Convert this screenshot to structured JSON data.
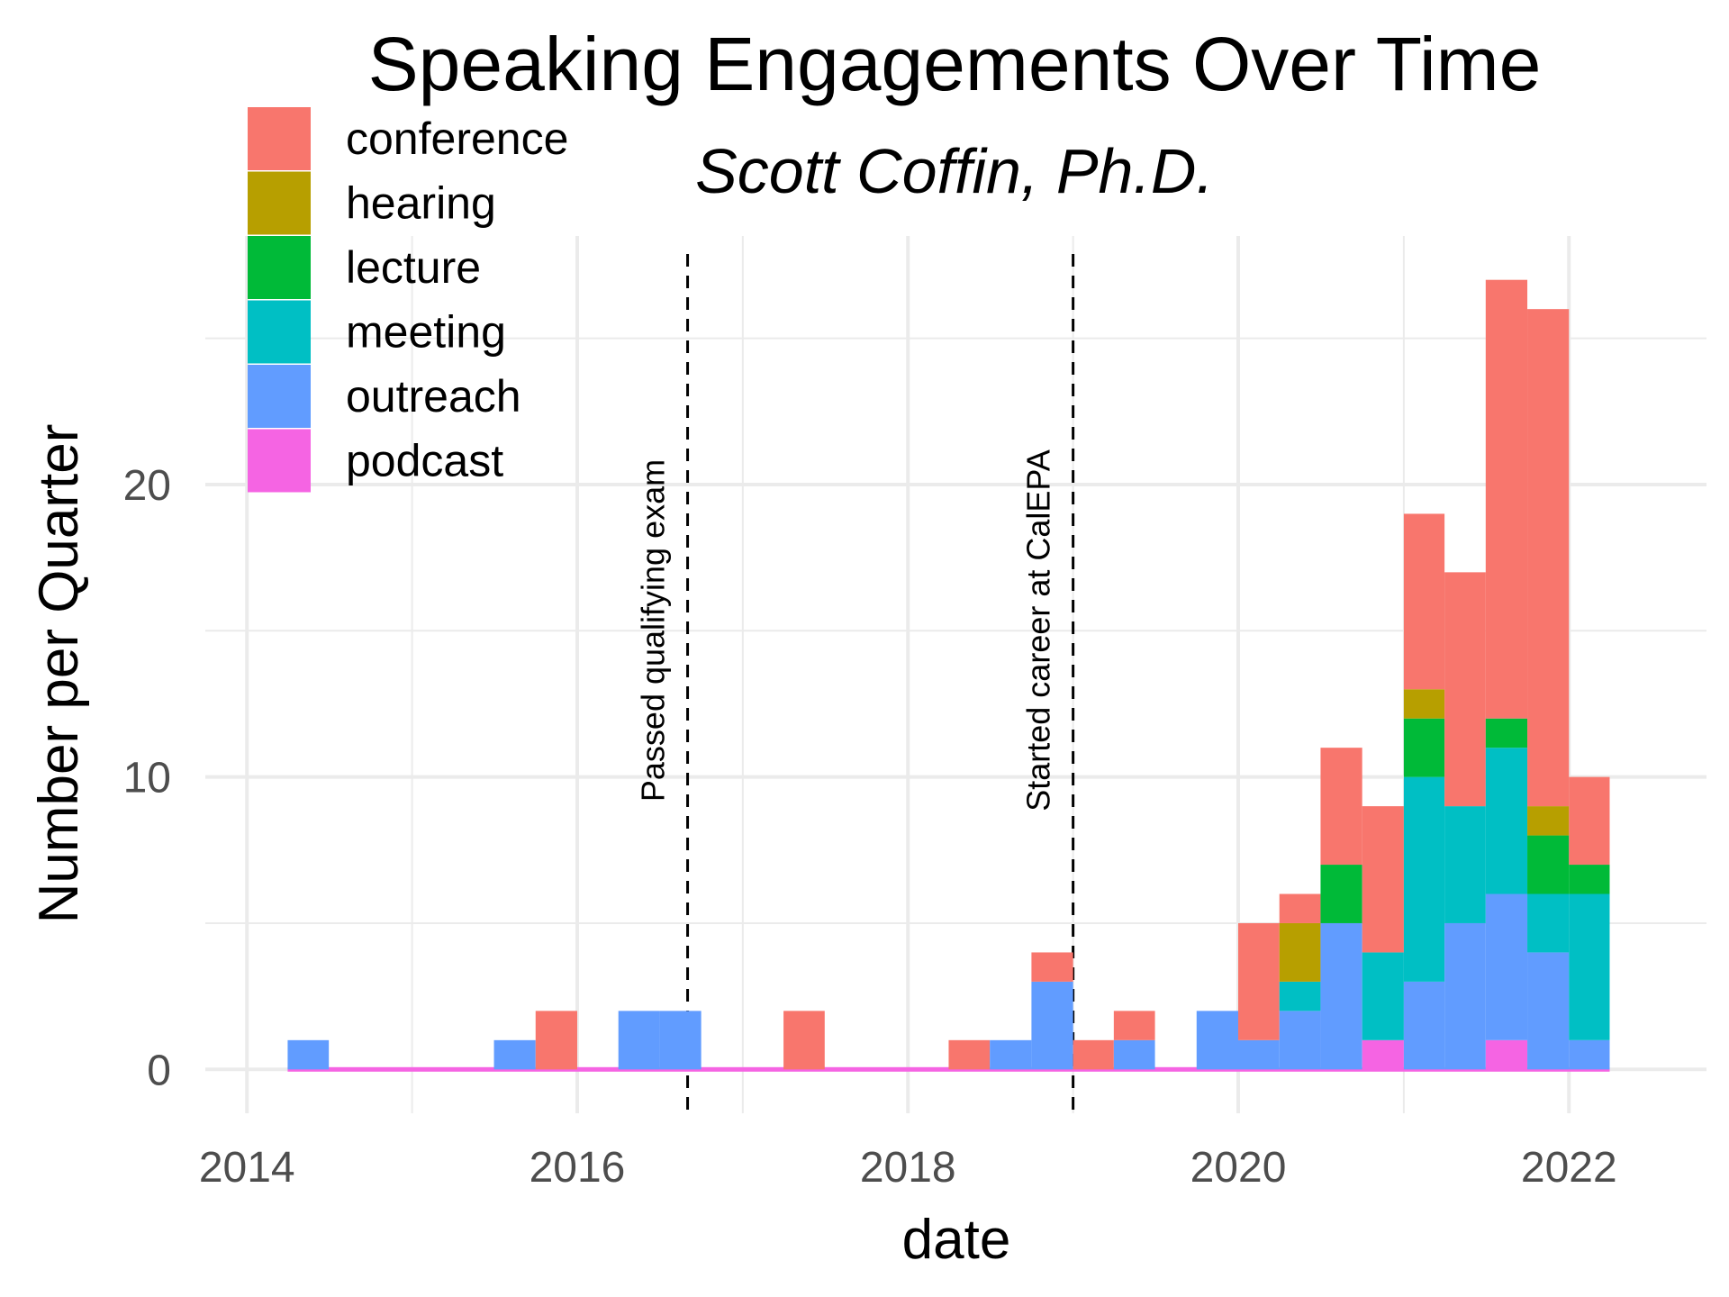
{
  "chart_data": {
    "type": "bar",
    "stacked": true,
    "title": "Speaking Engagements Over Time",
    "subtitle": "Scott Coffin, Ph.D.",
    "xlabel": "date",
    "ylabel": "Number per Quarter",
    "x_ticks": [
      "2014",
      "2016",
      "2018",
      "2020",
      "2022"
    ],
    "y_ticks": [
      "0",
      "10",
      "20"
    ],
    "xlim": [
      "2013-10-01",
      "2022-11-01"
    ],
    "ylim": [
      -1.5,
      28.5
    ],
    "grid": true,
    "legend_position": "top-left",
    "colors": {
      "conference": "#F8766D",
      "hearing": "#B79F00",
      "lecture": "#00BA38",
      "meeting": "#00BFC4",
      "outreach": "#619CFF",
      "podcast": "#F564E3"
    },
    "legend": [
      "conference",
      "hearing",
      "lecture",
      "meeting",
      "outreach",
      "podcast"
    ],
    "stack_order": [
      "podcast",
      "outreach",
      "meeting",
      "lecture",
      "hearing",
      "conference"
    ],
    "bins": [
      {
        "start": "2014-04-01",
        "end": "2014-07-01",
        "conference": 0,
        "hearing": 0,
        "lecture": 0,
        "meeting": 0,
        "outreach": 1,
        "podcast": 0
      },
      {
        "start": "2015-07-01",
        "end": "2015-10-01",
        "conference": 0,
        "hearing": 0,
        "lecture": 0,
        "meeting": 0,
        "outreach": 1,
        "podcast": 0
      },
      {
        "start": "2015-10-01",
        "end": "2016-01-01",
        "conference": 2,
        "hearing": 0,
        "lecture": 0,
        "meeting": 0,
        "outreach": 0,
        "podcast": 0
      },
      {
        "start": "2016-04-01",
        "end": "2016-07-01",
        "conference": 0,
        "hearing": 0,
        "lecture": 0,
        "meeting": 0,
        "outreach": 2,
        "podcast": 0
      },
      {
        "start": "2016-07-01",
        "end": "2016-10-01",
        "conference": 0,
        "hearing": 0,
        "lecture": 0,
        "meeting": 0,
        "outreach": 2,
        "podcast": 0
      },
      {
        "start": "2017-04-01",
        "end": "2017-07-01",
        "conference": 2,
        "hearing": 0,
        "lecture": 0,
        "meeting": 0,
        "outreach": 0,
        "podcast": 0
      },
      {
        "start": "2018-04-01",
        "end": "2018-07-01",
        "conference": 1,
        "hearing": 0,
        "lecture": 0,
        "meeting": 0,
        "outreach": 0,
        "podcast": 0
      },
      {
        "start": "2018-07-01",
        "end": "2018-10-01",
        "conference": 0,
        "hearing": 0,
        "lecture": 0,
        "meeting": 0,
        "outreach": 1,
        "podcast": 0
      },
      {
        "start": "2018-10-01",
        "end": "2019-01-01",
        "conference": 1,
        "hearing": 0,
        "lecture": 0,
        "meeting": 0,
        "outreach": 3,
        "podcast": 0
      },
      {
        "start": "2019-01-01",
        "end": "2019-04-01",
        "conference": 1,
        "hearing": 0,
        "lecture": 0,
        "meeting": 0,
        "outreach": 0,
        "podcast": 0
      },
      {
        "start": "2019-04-01",
        "end": "2019-07-01",
        "conference": 1,
        "hearing": 0,
        "lecture": 0,
        "meeting": 0,
        "outreach": 1,
        "podcast": 0
      },
      {
        "start": "2019-10-01",
        "end": "2020-01-01",
        "conference": 0,
        "hearing": 0,
        "lecture": 0,
        "meeting": 0,
        "outreach": 2,
        "podcast": 0
      },
      {
        "start": "2020-01-01",
        "end": "2020-04-01",
        "conference": 4,
        "hearing": 0,
        "lecture": 0,
        "meeting": 0,
        "outreach": 1,
        "podcast": 0
      },
      {
        "start": "2020-04-01",
        "end": "2020-07-01",
        "conference": 1,
        "hearing": 2,
        "lecture": 0,
        "meeting": 1,
        "outreach": 2,
        "podcast": 0
      },
      {
        "start": "2020-07-01",
        "end": "2020-10-01",
        "conference": 4,
        "hearing": 0,
        "lecture": 2,
        "meeting": 0,
        "outreach": 5,
        "podcast": 0
      },
      {
        "start": "2020-10-01",
        "end": "2021-01-01",
        "conference": 5,
        "hearing": 0,
        "lecture": 0,
        "meeting": 3,
        "outreach": 0,
        "podcast": 1
      },
      {
        "start": "2021-01-01",
        "end": "2021-04-01",
        "conference": 6,
        "hearing": 1,
        "lecture": 2,
        "meeting": 7,
        "outreach": 3,
        "podcast": 0
      },
      {
        "start": "2021-04-01",
        "end": "2021-07-01",
        "conference": 8,
        "hearing": 0,
        "lecture": 0,
        "meeting": 4,
        "outreach": 5,
        "podcast": 0
      },
      {
        "start": "2021-07-01",
        "end": "2021-10-01",
        "conference": 15,
        "hearing": 0,
        "lecture": 1,
        "meeting": 5,
        "outreach": 5,
        "podcast": 1
      },
      {
        "start": "2021-10-01",
        "end": "2022-01-01",
        "conference": 17,
        "hearing": 1,
        "lecture": 2,
        "meeting": 2,
        "outreach": 4,
        "podcast": 0
      },
      {
        "start": "2022-01-01",
        "end": "2022-04-01",
        "conference": 3,
        "hearing": 0,
        "lecture": 1,
        "meeting": 5,
        "outreach": 1,
        "podcast": 0
      }
    ],
    "baseline": {
      "series": "podcast",
      "start": "2014-04-01",
      "end": "2022-04-01"
    },
    "annotations": [
      {
        "date": "2016-09-01",
        "label": "Passed qualifying exam"
      },
      {
        "date": "2019-01-01",
        "label": "Started career at CalEPA"
      }
    ]
  }
}
